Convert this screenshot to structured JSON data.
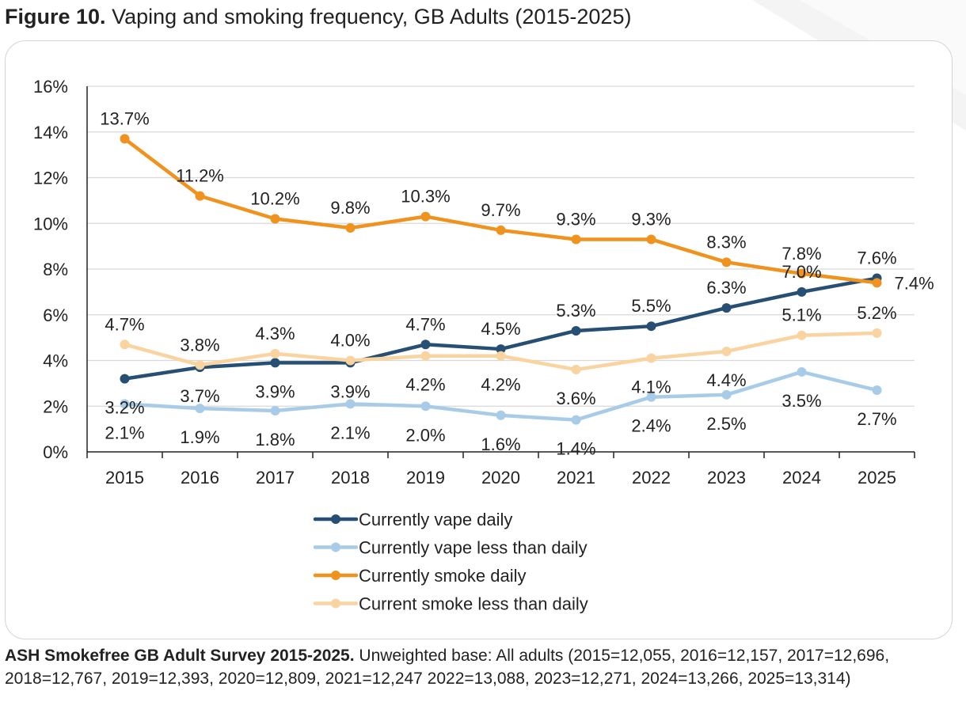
{
  "figure": {
    "label": "Figure 10.",
    "title": "Vaping and smoking frequency, GB Adults (2015-2025)"
  },
  "source": {
    "label": "ASH Smokefree GB Adult Survey 2015-2025.",
    "text": "Unweighted base: All adults (2015=12,055, 2016=12,157, 2017=12,696, 2018=12,767, 2019=12,393, 2020=12,809, 2021=12,247 2022=13,088, 2023=12,271, 2024=13,266, 2025=13,314)"
  },
  "chart_data": {
    "type": "line",
    "categories": [
      "2015",
      "2016",
      "2017",
      "2018",
      "2019",
      "2020",
      "2021",
      "2022",
      "2023",
      "2024",
      "2025"
    ],
    "ylim": [
      0,
      16
    ],
    "yticks": [
      0,
      2,
      4,
      6,
      8,
      10,
      12,
      14,
      16
    ],
    "ytick_labels": [
      "0%",
      "2%",
      "4%",
      "6%",
      "8%",
      "10%",
      "12%",
      "14%",
      "16%"
    ],
    "grid": true,
    "legend_position": "bottom",
    "series": [
      {
        "name": "Currently vape daily",
        "color": "#264f73",
        "values": [
          3.2,
          3.7,
          3.9,
          3.9,
          4.7,
          4.5,
          5.3,
          5.5,
          6.3,
          7.0,
          7.6
        ],
        "labels": [
          "3.2%",
          "3.7%",
          "3.9%",
          "3.9%",
          "4.7%",
          "4.5%",
          "5.3%",
          "5.5%",
          "6.3%",
          "7.0%",
          "7.6%"
        ],
        "label_position": [
          "below",
          "below",
          "below",
          "below",
          "above",
          "above",
          "above",
          "above",
          "above",
          "above",
          "above"
        ]
      },
      {
        "name": "Currently vape less than daily",
        "color": "#a8cce8",
        "values": [
          2.1,
          1.9,
          1.8,
          2.1,
          2.0,
          1.6,
          1.4,
          2.4,
          2.5,
          3.5,
          2.7
        ],
        "labels": [
          "2.1%",
          "1.9%",
          "1.8%",
          "2.1%",
          "2.0%",
          "1.6%",
          "1.4%",
          "2.4%",
          "2.5%",
          "3.5%",
          "2.7%"
        ],
        "label_position": [
          "below",
          "below",
          "below",
          "below",
          "below",
          "below",
          "below",
          "below",
          "below",
          "below",
          "below"
        ]
      },
      {
        "name": "Currently smoke daily",
        "color": "#f0921e",
        "values": [
          13.7,
          11.2,
          10.2,
          9.8,
          10.3,
          9.7,
          9.3,
          9.3,
          8.3,
          7.8,
          7.4
        ],
        "labels": [
          "13.7%",
          "11.2%",
          "10.2%",
          "9.8%",
          "10.3%",
          "9.7%",
          "9.3%",
          "9.3%",
          "8.3%",
          "7.8%",
          "7.4%"
        ],
        "label_position": [
          "above",
          "above",
          "above",
          "above",
          "above",
          "above",
          "above",
          "above",
          "above",
          "above",
          "right"
        ]
      },
      {
        "name": "Current smoke less than daily",
        "color": "#f9d4a0",
        "values": [
          4.7,
          3.8,
          4.3,
          4.0,
          4.2,
          4.2,
          3.6,
          4.1,
          4.4,
          5.1,
          5.2
        ],
        "labels": [
          "4.7%",
          "3.8%",
          "4.3%",
          "4.0%",
          "4.2%",
          "4.2%",
          "3.6%",
          "4.1%",
          "4.4%",
          "5.1%",
          "5.2%"
        ],
        "label_position": [
          "above",
          "above",
          "above",
          "above",
          "below",
          "below",
          "below",
          "below",
          "below",
          "above",
          "above"
        ]
      }
    ]
  }
}
